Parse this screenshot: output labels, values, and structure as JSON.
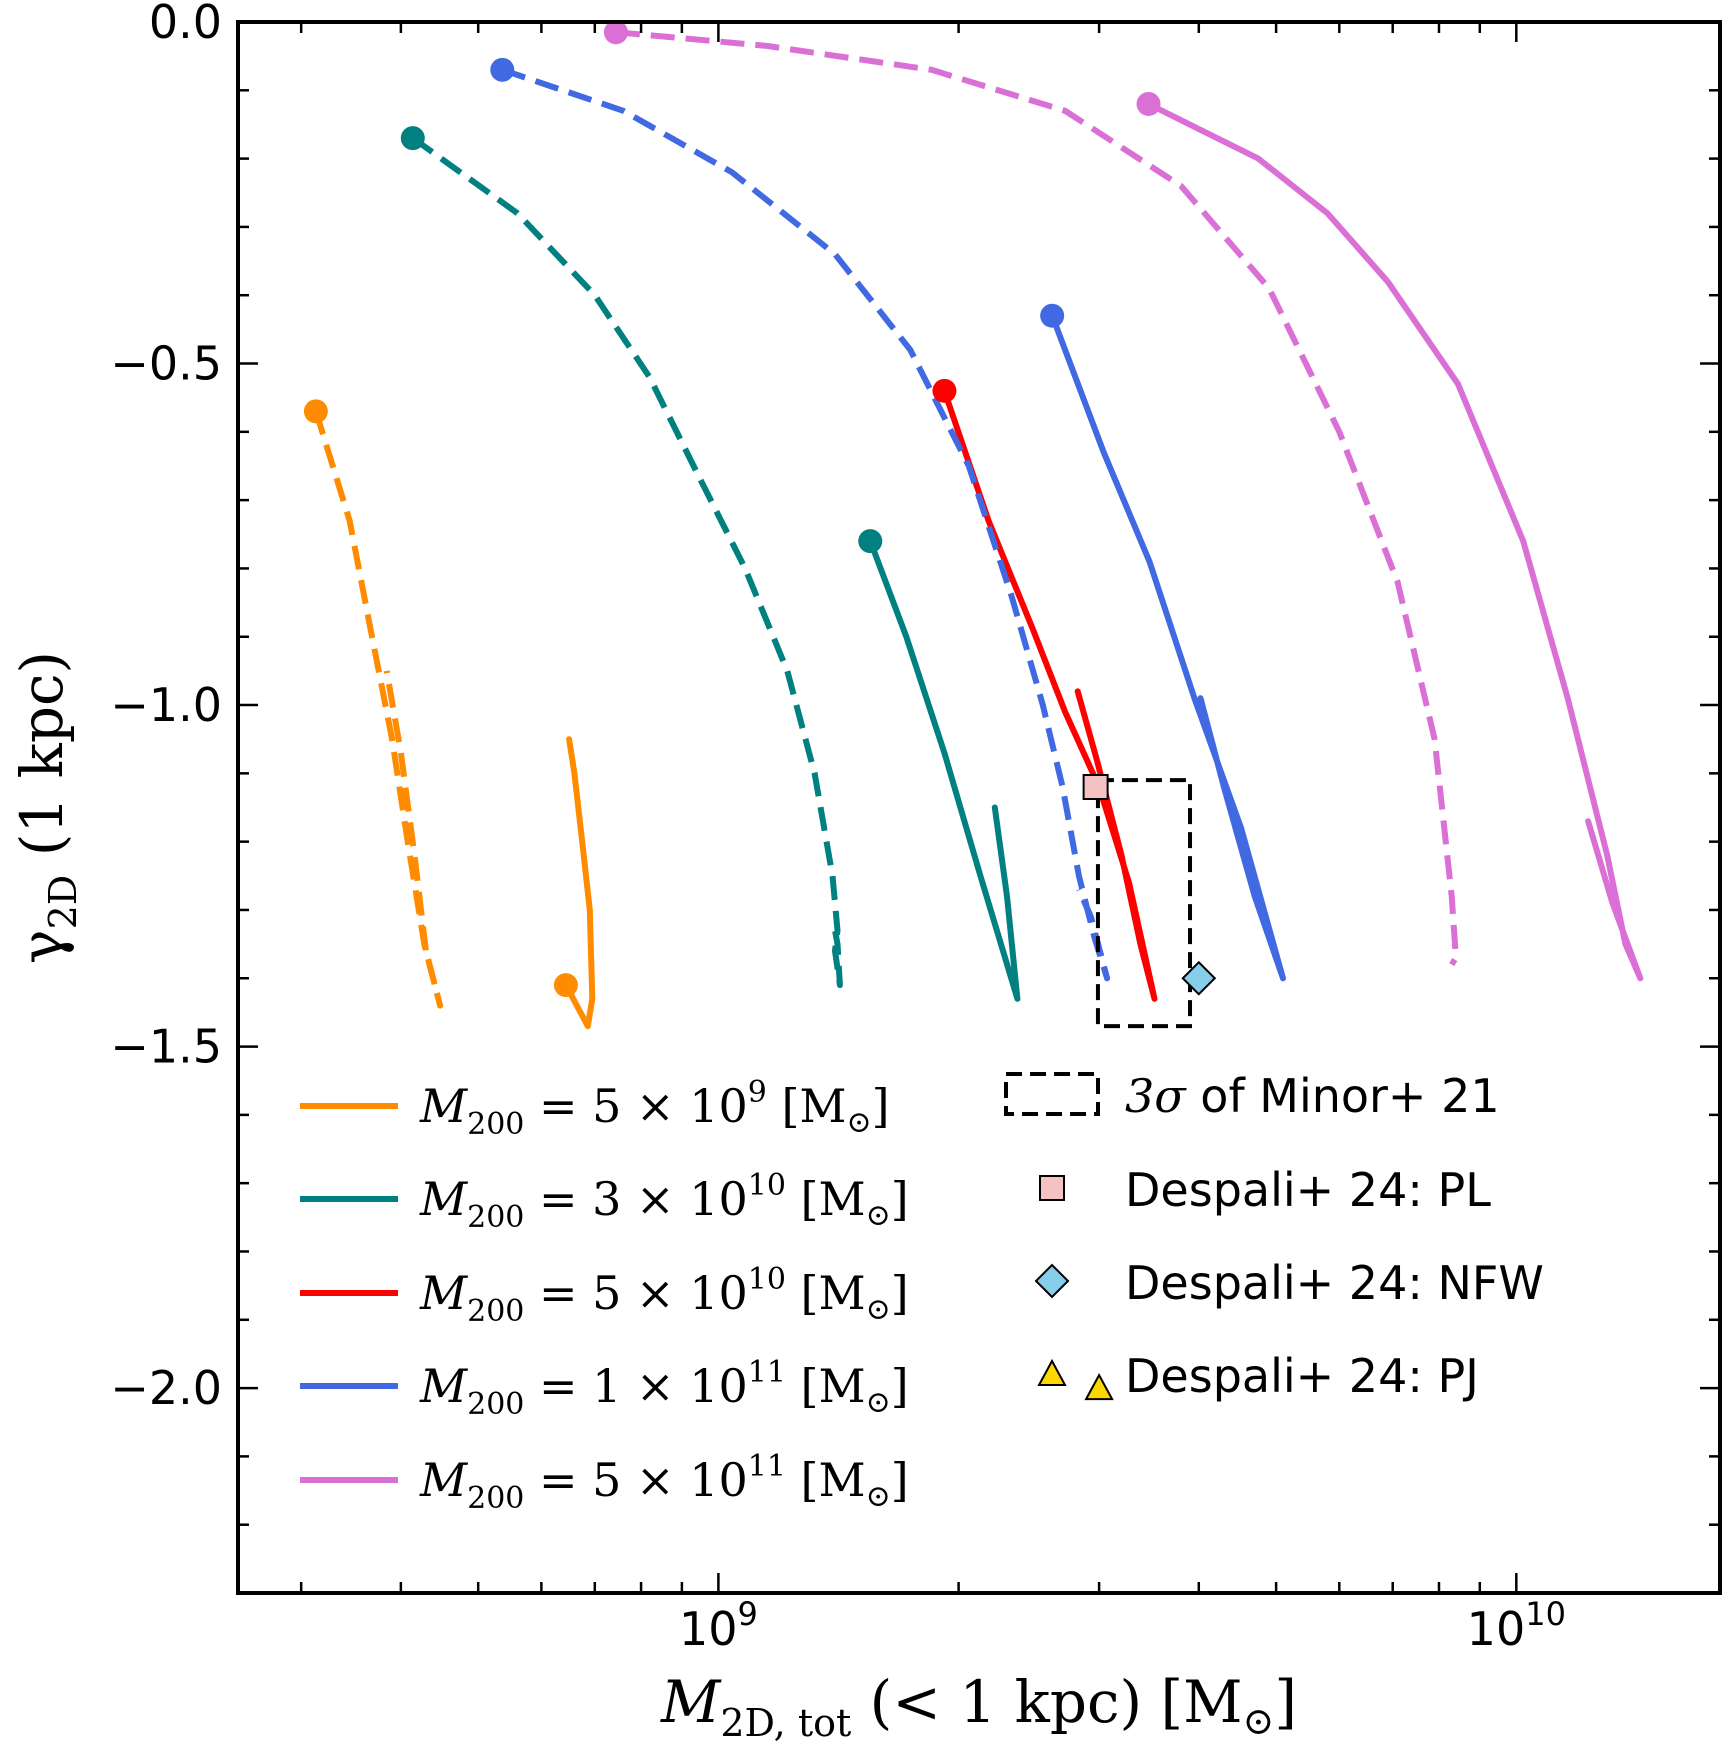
{
  "chart_data": {
    "type": "line",
    "xscale": "log",
    "xlim": [
      250000000,
      18000000000
    ],
    "ylim": [
      -2.3,
      0.0
    ],
    "xlabel_main": "M",
    "xlabel_sub": "2D, tot",
    "xlabel_rest": " (< 1 kpc) [M",
    "xlabel_sun": "⊙",
    "xlabel_close": "]",
    "ylabel_main": "γ",
    "ylabel_sub": "2D",
    "ylabel_rest": " (1 kpc)",
    "x_major_ticks": [
      {
        "value": 1000000000,
        "base": "10",
        "exp": "9"
      },
      {
        "value": 10000000000,
        "base": "10",
        "exp": "10"
      }
    ],
    "y_ticks": [
      {
        "value": 0.0,
        "label": "0.0"
      },
      {
        "value": -0.5,
        "label": "−0.5"
      },
      {
        "value": -1.0,
        "label": "−1.0"
      },
      {
        "value": -1.5,
        "label": "−1.5"
      },
      {
        "value": -2.0,
        "label": "−2.0"
      }
    ],
    "y_minor_step": 0.1,
    "series": [
      {
        "name": "M200 = 5e9",
        "color": "#ff8c00",
        "style": "dashed",
        "points": [
          [
            313000000,
            -0.57
          ],
          [
            345000000,
            -0.73
          ],
          [
            368000000,
            -0.9
          ],
          [
            390000000,
            -1.05
          ],
          [
            408000000,
            -1.2
          ],
          [
            428000000,
            -1.35
          ],
          [
            448000000,
            -1.44
          ],
          [
            430000000,
            -1.36
          ],
          [
            416000000,
            -1.22
          ],
          [
            400000000,
            -1.07
          ],
          [
            384000000,
            -0.95
          ]
        ]
      },
      {
        "name": "M200 = 5e9",
        "color": "#ff8c00",
        "style": "solid",
        "points": [
          [
            644000000,
            -1.41
          ],
          [
            686000000,
            -1.47
          ],
          [
            695000000,
            -1.43
          ],
          [
            690000000,
            -1.3
          ],
          [
            675000000,
            -1.2
          ],
          [
            660000000,
            -1.1
          ],
          [
            650000000,
            -1.05
          ]
        ]
      },
      {
        "name": "M200 = 3e10",
        "color": "#008080",
        "style": "dashed",
        "points": [
          [
            414000000,
            -0.17
          ],
          [
            560000000,
            -0.28
          ],
          [
            700000000,
            -0.4
          ],
          [
            820000000,
            -0.52
          ],
          [
            940000000,
            -0.66
          ],
          [
            1080000000,
            -0.8
          ],
          [
            1220000000,
            -0.95
          ],
          [
            1320000000,
            -1.1
          ],
          [
            1390000000,
            -1.25
          ],
          [
            1410000000,
            -1.33
          ],
          [
            1400000000,
            -1.36
          ],
          [
            1420000000,
            -1.41
          ],
          [
            1410000000,
            -1.35
          ],
          [
            1400000000,
            -1.33
          ]
        ]
      },
      {
        "name": "M200 = 3e10",
        "color": "#008080",
        "style": "solid",
        "points": [
          [
            1550000000,
            -0.76
          ],
          [
            1720000000,
            -0.9
          ],
          [
            1920000000,
            -1.07
          ],
          [
            2130000000,
            -1.25
          ],
          [
            2370000000,
            -1.43
          ],
          [
            2300000000,
            -1.28
          ],
          [
            2220000000,
            -1.15
          ]
        ]
      },
      {
        "name": "M200 = 5e10",
        "color": "#ff0000",
        "style": "solid",
        "points": [
          [
            1920000000,
            -0.54
          ],
          [
            2180000000,
            -0.73
          ],
          [
            2480000000,
            -0.89
          ],
          [
            2720000000,
            -1.01
          ],
          [
            3000000000,
            -1.12
          ],
          [
            3270000000,
            -1.26
          ],
          [
            3520000000,
            -1.43
          ],
          [
            3380000000,
            -1.35
          ],
          [
            3200000000,
            -1.22
          ],
          [
            2980000000,
            -1.08
          ],
          [
            2820000000,
            -0.98
          ]
        ]
      },
      {
        "name": "M200 = 1e11",
        "color": "#4169e1",
        "style": "dashed",
        "points": [
          [
            536000000,
            -0.07
          ],
          [
            760000000,
            -0.13
          ],
          [
            1040000000,
            -0.22
          ],
          [
            1400000000,
            -0.34
          ],
          [
            1740000000,
            -0.48
          ],
          [
            2060000000,
            -0.65
          ],
          [
            2330000000,
            -0.84
          ],
          [
            2550000000,
            -1.0
          ],
          [
            2700000000,
            -1.12
          ],
          [
            2830000000,
            -1.25
          ],
          [
            2960000000,
            -1.34
          ],
          [
            3070000000,
            -1.4
          ],
          [
            2930000000,
            -1.31
          ],
          [
            2830000000,
            -1.27
          ]
        ]
      },
      {
        "name": "M200 = 1e11",
        "color": "#4169e1",
        "style": "solid",
        "points": [
          [
            2620000000,
            -0.43
          ],
          [
            3040000000,
            -0.63
          ],
          [
            3470000000,
            -0.79
          ],
          [
            3950000000,
            -0.99
          ],
          [
            4520000000,
            -1.18
          ],
          [
            5100000000,
            -1.4
          ],
          [
            4700000000,
            -1.28
          ],
          [
            4300000000,
            -1.12
          ],
          [
            4020000000,
            -0.99
          ]
        ]
      },
      {
        "name": "M200 = 5e11",
        "color": "#da70d6",
        "style": "dashed",
        "points": [
          [
            744000000,
            -0.015
          ],
          [
            1150000000,
            -0.035
          ],
          [
            1850000000,
            -0.07
          ],
          [
            2720000000,
            -0.13
          ],
          [
            3800000000,
            -0.24
          ],
          [
            4900000000,
            -0.39
          ],
          [
            6000000000,
            -0.6
          ],
          [
            7100000000,
            -0.82
          ],
          [
            7900000000,
            -1.05
          ],
          [
            8300000000,
            -1.28
          ],
          [
            8400000000,
            -1.37
          ],
          [
            8300000000,
            -1.38
          ]
        ]
      },
      {
        "name": "M200 = 5e11",
        "color": "#da70d6",
        "style": "solid",
        "points": [
          [
            3460000000,
            -0.12
          ],
          [
            4750000000,
            -0.2
          ],
          [
            5800000000,
            -0.28
          ],
          [
            6900000000,
            -0.38
          ],
          [
            8450000000,
            -0.53
          ],
          [
            10200000000,
            -0.76
          ],
          [
            11600000000,
            -0.99
          ],
          [
            13000000000,
            -1.22
          ],
          [
            13700000000,
            -1.35
          ],
          [
            14300000000,
            -1.4
          ],
          [
            13200000000,
            -1.29
          ],
          [
            12300000000,
            -1.17
          ]
        ]
      }
    ],
    "start_markers": [
      {
        "x": 313000000,
        "y": -0.57,
        "color": "#ff8c00"
      },
      {
        "x": 644000000,
        "y": -1.41,
        "color": "#ff8c00"
      },
      {
        "x": 414000000,
        "y": -0.17,
        "color": "#008080"
      },
      {
        "x": 1550000000,
        "y": -0.76,
        "color": "#008080"
      },
      {
        "x": 1920000000,
        "y": -0.54,
        "color": "#ff0000"
      },
      {
        "x": 536000000,
        "y": -0.07,
        "color": "#4169e1"
      },
      {
        "x": 2620000000,
        "y": -0.43,
        "color": "#4169e1"
      },
      {
        "x": 744000000,
        "y": -0.015,
        "color": "#da70d6"
      },
      {
        "x": 3460000000,
        "y": -0.12,
        "color": "#da70d6"
      }
    ],
    "observations": {
      "box": {
        "x0": 2990000000,
        "x1": 3900000000,
        "y0": -1.47,
        "y1": -1.11
      },
      "pl": {
        "x": 2970000000,
        "y": -1.12,
        "color": "#f4c2c2"
      },
      "nfw": {
        "x": 4000000000,
        "y": -1.4,
        "color": "#87ceeb"
      },
      "pj": {
        "x": 3000000000,
        "y": -2.0,
        "color": "#ffd700"
      }
    },
    "legend": {
      "left": [
        {
          "color": "#ff8c00",
          "label_prefix": "M",
          "label_sub": "200",
          "label_mid": " = 5 × 10",
          "label_exp": "9",
          "label_unit": " [M",
          "label_sun": "⊙",
          "label_close": "]"
        },
        {
          "color": "#008080",
          "label_prefix": "M",
          "label_sub": "200",
          "label_mid": " = 3 × 10",
          "label_exp": "10",
          "label_unit": " [M",
          "label_sun": "⊙",
          "label_close": "]"
        },
        {
          "color": "#ff0000",
          "label_prefix": "M",
          "label_sub": "200",
          "label_mid": " = 5 × 10",
          "label_exp": "10",
          "label_unit": " [M",
          "label_sun": "⊙",
          "label_close": "]"
        },
        {
          "color": "#4169e1",
          "label_prefix": "M",
          "label_sub": "200",
          "label_mid": " = 1 × 10",
          "label_exp": "11",
          "label_unit": " [M",
          "label_sun": "⊙",
          "label_close": "]"
        },
        {
          "color": "#da70d6",
          "label_prefix": "M",
          "label_sub": "200",
          "label_mid": " = 5 × 10",
          "label_exp": "11",
          "label_unit": " [M",
          "label_sun": "⊙",
          "label_close": "]"
        }
      ],
      "right": [
        {
          "kind": "box",
          "math": "3σ",
          "text": " of Minor+ 21"
        },
        {
          "kind": "square",
          "color": "#f4c2c2",
          "text": "Despali+ 24: PL"
        },
        {
          "kind": "diamond",
          "color": "#87ceeb",
          "text": "Despali+ 24: NFW"
        },
        {
          "kind": "triangle",
          "color": "#ffd700",
          "text": "Despali+ 24: PJ"
        }
      ]
    }
  }
}
